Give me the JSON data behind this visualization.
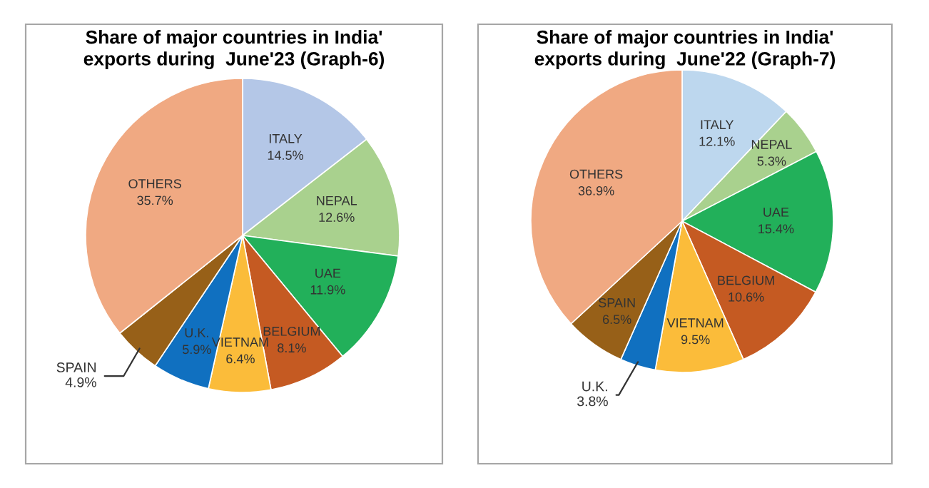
{
  "chart_data": [
    {
      "type": "pie",
      "title": "Share of major countries in India'\nexports during  June'23 (Graph-6)",
      "categories": [
        "ITALY",
        "NEPAL",
        "UAE",
        "BELGIUM",
        "VIETNAM",
        "U.K.",
        "SPAIN",
        "OTHERS"
      ],
      "values": [
        14.5,
        12.6,
        11.9,
        8.1,
        6.4,
        5.9,
        4.9,
        35.7
      ],
      "value_labels": [
        "14.5%",
        "12.6%",
        "11.9%",
        "8.1%",
        "6.4%",
        "5.9%",
        "4.9%",
        "35.7%"
      ],
      "colors": [
        "#b4c7e7",
        "#a9d18e",
        "#22b05a",
        "#c55a22",
        "#fbbc3a",
        "#1070c0",
        "#976018",
        "#f0a982"
      ],
      "legend": false
    },
    {
      "type": "pie",
      "title": "Share of major countries in India'\nexports during  June'22 (Graph-7)",
      "categories": [
        "ITALY",
        "NEPAL",
        "UAE",
        "BELGIUM",
        "VIETNAM",
        "U.K.",
        "SPAIN",
        "OTHERS"
      ],
      "values": [
        12.1,
        5.3,
        15.4,
        10.6,
        9.5,
        3.8,
        6.5,
        36.9
      ],
      "value_labels": [
        "12.1%",
        "5.3%",
        "15.4%",
        "10.6%",
        "9.5%",
        "3.8%",
        "6.5%",
        "36.9%"
      ],
      "colors": [
        "#bdd7ee",
        "#a9d18e",
        "#22b05a",
        "#c55a22",
        "#fbbc3a",
        "#1070c0",
        "#976018",
        "#f0a982"
      ],
      "legend": false
    }
  ]
}
